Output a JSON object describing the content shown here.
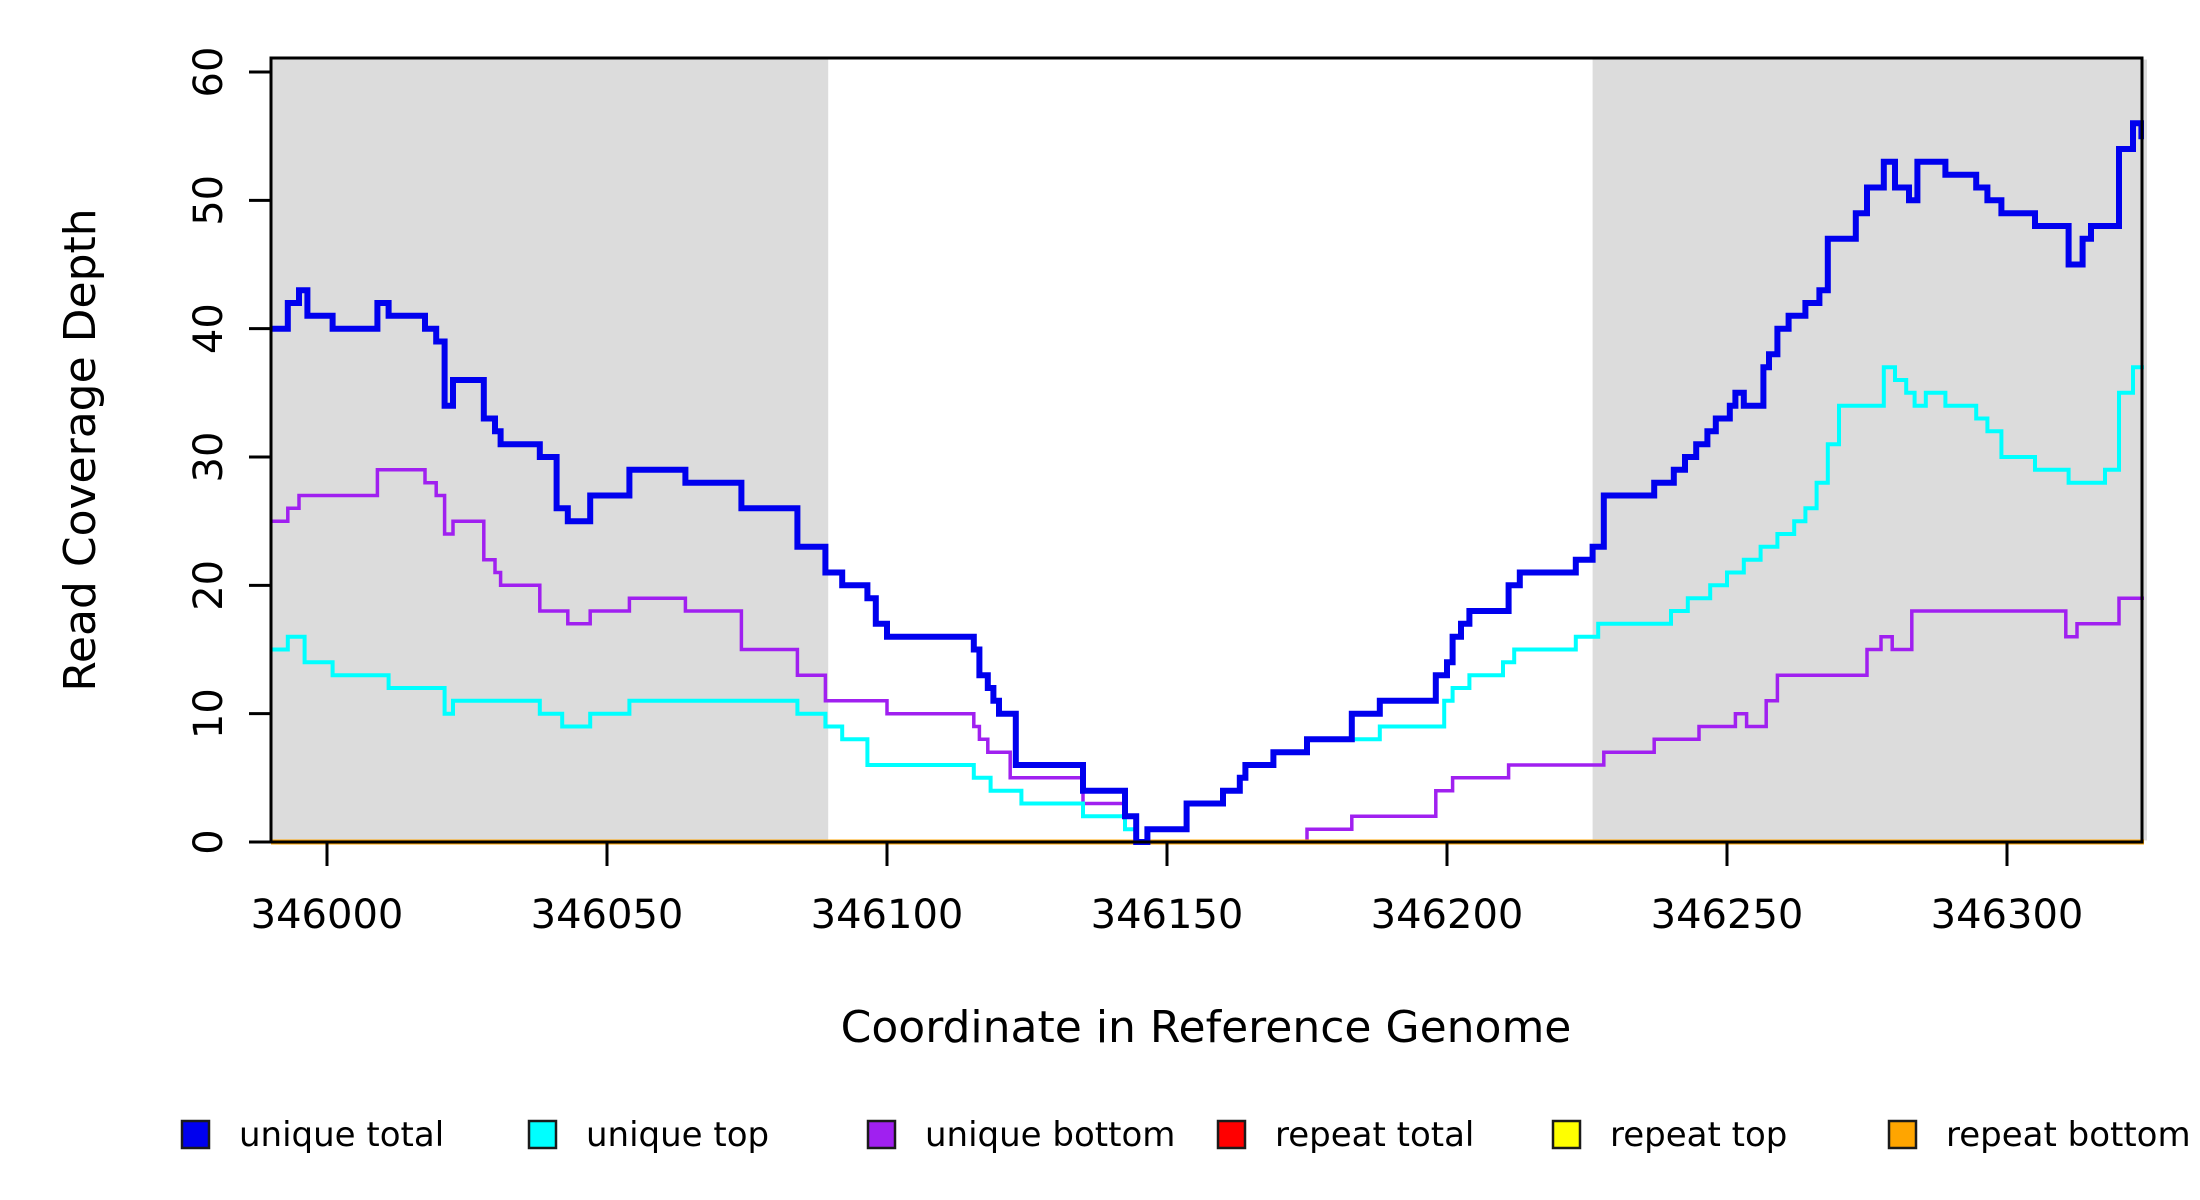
{
  "figure": {
    "background_color": "#ffffff",
    "plot_border_color": "#000000",
    "shaded_region_color": "#dcdcdc"
  },
  "legend": [
    {
      "label": "unique total",
      "color": "#0000ee"
    },
    {
      "label": "unique top",
      "color": "#00ffff"
    },
    {
      "label": "unique bottom",
      "color": "#a020f0"
    },
    {
      "label": "repeat total",
      "color": "#ff0000"
    },
    {
      "label": "repeat top",
      "color": "#ffff00"
    },
    {
      "label": "repeat bottom",
      "color": "#ffa500"
    }
  ],
  "chart_data": {
    "type": "line",
    "subtype": "step-after",
    "title": "",
    "xlabel": "Coordinate in Reference Genome",
    "ylabel": "Read Coverage Depth",
    "xlim": [
      345990,
      346325
    ],
    "ylim": [
      0,
      61
    ],
    "grid": false,
    "legend_position": "bottom",
    "x_ticks": [
      {
        "value": 346000,
        "label": "346000"
      },
      {
        "value": 346050,
        "label": "346050"
      },
      {
        "value": 346100,
        "label": "346100"
      },
      {
        "value": 346150,
        "label": "346150"
      },
      {
        "value": 346200,
        "label": "346200"
      },
      {
        "value": 346250,
        "label": "346250"
      },
      {
        "value": 346300,
        "label": "346300"
      }
    ],
    "y_ticks": [
      {
        "value": 0,
        "label": "0"
      },
      {
        "value": 10,
        "label": "10"
      },
      {
        "value": 20,
        "label": "20"
      },
      {
        "value": 30,
        "label": "30"
      },
      {
        "value": 40,
        "label": "40"
      },
      {
        "value": 50,
        "label": "50"
      },
      {
        "value": 60,
        "label": "60"
      }
    ],
    "shaded_regions": [
      {
        "start": 345990,
        "end": 346089.5
      },
      {
        "start": 346226,
        "end": 346325
      }
    ],
    "series": [
      {
        "name": "repeat total",
        "color": "#ff0000",
        "points": [
          [
            345990,
            0
          ]
        ]
      },
      {
        "name": "repeat top",
        "color": "#ffff00",
        "points": [
          [
            345990,
            0
          ]
        ]
      },
      {
        "name": "unique bottom",
        "color": "#a020f0",
        "points": [
          [
            345990,
            25
          ],
          [
            345993,
            26
          ],
          [
            345995,
            27
          ],
          [
            346009,
            29
          ],
          [
            346017.5,
            28
          ],
          [
            346019.5,
            27
          ],
          [
            346021,
            24
          ],
          [
            346022.5,
            25
          ],
          [
            346028,
            22
          ],
          [
            346030,
            21
          ],
          [
            346031,
            20
          ],
          [
            346038,
            18
          ],
          [
            346043,
            17
          ],
          [
            346047,
            18
          ],
          [
            346054,
            19
          ],
          [
            346064,
            18
          ],
          [
            346074,
            15
          ],
          [
            346084,
            13
          ],
          [
            346089,
            11
          ],
          [
            346100,
            10
          ],
          [
            346115.5,
            9
          ],
          [
            346116.5,
            8
          ],
          [
            346118,
            7
          ],
          [
            346122,
            5
          ],
          [
            346135,
            3
          ],
          [
            346142.5,
            2
          ],
          [
            346144.5,
            0
          ],
          [
            346175,
            1
          ],
          [
            346183,
            2
          ],
          [
            346198,
            4
          ],
          [
            346201,
            5
          ],
          [
            346211,
            6
          ],
          [
            346228,
            7
          ],
          [
            346237,
            8
          ],
          [
            346245,
            9
          ],
          [
            346251.5,
            10
          ],
          [
            346253.5,
            9
          ],
          [
            346257,
            11
          ],
          [
            346259,
            13
          ],
          [
            346275,
            15
          ],
          [
            346277.5,
            16
          ],
          [
            346279.5,
            15
          ],
          [
            346283,
            18
          ],
          [
            346310.5,
            16
          ],
          [
            346312.5,
            17
          ],
          [
            346320,
            19
          ]
        ]
      },
      {
        "name": "repeat bottom",
        "color": "#ffa500",
        "points": [
          [
            345990,
            0
          ]
        ]
      },
      {
        "name": "unique top",
        "color": "#00ffff",
        "points": [
          [
            345990,
            15
          ],
          [
            345993,
            16
          ],
          [
            345996,
            14
          ],
          [
            346001,
            13
          ],
          [
            346011,
            12
          ],
          [
            346021,
            10
          ],
          [
            346022.5,
            11
          ],
          [
            346038,
            10
          ],
          [
            346042,
            9
          ],
          [
            346047,
            10
          ],
          [
            346054,
            11
          ],
          [
            346084,
            10
          ],
          [
            346089,
            9
          ],
          [
            346092,
            8
          ],
          [
            346096.5,
            6
          ],
          [
            346115.5,
            5
          ],
          [
            346118.5,
            4
          ],
          [
            346124,
            3
          ],
          [
            346135,
            2
          ],
          [
            346142.5,
            1
          ],
          [
            346144.5,
            0
          ],
          [
            346146.5,
            1
          ],
          [
            346153.5,
            3
          ],
          [
            346160,
            4
          ],
          [
            346163,
            5
          ],
          [
            346164,
            6
          ],
          [
            346169,
            7
          ],
          [
            346175,
            8
          ],
          [
            346188,
            9
          ],
          [
            346199.5,
            11
          ],
          [
            346201,
            12
          ],
          [
            346204,
            13
          ],
          [
            346210,
            14
          ],
          [
            346212,
            15
          ],
          [
            346223,
            16
          ],
          [
            346227,
            17
          ],
          [
            346240,
            18
          ],
          [
            346243,
            19
          ],
          [
            346247,
            20
          ],
          [
            346250,
            21
          ],
          [
            346253,
            22
          ],
          [
            346256,
            23
          ],
          [
            346259,
            24
          ],
          [
            346262,
            25
          ],
          [
            346264,
            26
          ],
          [
            346266,
            28
          ],
          [
            346268,
            31
          ],
          [
            346270,
            34
          ],
          [
            346278,
            37
          ],
          [
            346280,
            36
          ],
          [
            346282,
            35
          ],
          [
            346283.5,
            34
          ],
          [
            346285.5,
            35
          ],
          [
            346289,
            34
          ],
          [
            346294.5,
            33
          ],
          [
            346296.5,
            32
          ],
          [
            346299,
            30
          ],
          [
            346305,
            29
          ],
          [
            346311,
            28
          ],
          [
            346317.5,
            29
          ],
          [
            346320,
            35
          ],
          [
            346322.5,
            37
          ]
        ]
      },
      {
        "name": "unique total",
        "color": "#0000ee",
        "points": [
          [
            345990,
            40
          ],
          [
            345993,
            42
          ],
          [
            345995,
            43
          ],
          [
            345996.5,
            41
          ],
          [
            346001,
            40
          ],
          [
            346009,
            42
          ],
          [
            346011,
            41
          ],
          [
            346017.5,
            40
          ],
          [
            346019.5,
            39
          ],
          [
            346021,
            34
          ],
          [
            346022.5,
            36
          ],
          [
            346028,
            33
          ],
          [
            346030,
            32
          ],
          [
            346031,
            31
          ],
          [
            346038,
            30
          ],
          [
            346041,
            26
          ],
          [
            346043,
            25
          ],
          [
            346047,
            27
          ],
          [
            346054,
            29
          ],
          [
            346064,
            28
          ],
          [
            346074,
            26
          ],
          [
            346084,
            23
          ],
          [
            346089,
            21
          ],
          [
            346092,
            20
          ],
          [
            346096.5,
            19
          ],
          [
            346098,
            17
          ],
          [
            346100,
            16
          ],
          [
            346115.5,
            15
          ],
          [
            346116.5,
            13
          ],
          [
            346118,
            12
          ],
          [
            346119,
            11
          ],
          [
            346120,
            10
          ],
          [
            346123,
            6
          ],
          [
            346135,
            4
          ],
          [
            346142.5,
            2
          ],
          [
            346144.5,
            0
          ],
          [
            346146.5,
            1
          ],
          [
            346153.5,
            3
          ],
          [
            346160,
            4
          ],
          [
            346163,
            5
          ],
          [
            346164,
            6
          ],
          [
            346169,
            7
          ],
          [
            346175,
            8
          ],
          [
            346183,
            10
          ],
          [
            346188,
            11
          ],
          [
            346198,
            13
          ],
          [
            346200,
            14
          ],
          [
            346201,
            16
          ],
          [
            346202.5,
            17
          ],
          [
            346204,
            18
          ],
          [
            346211,
            20
          ],
          [
            346213,
            21
          ],
          [
            346223,
            22
          ],
          [
            346226,
            23
          ],
          [
            346228,
            27
          ],
          [
            346237,
            28
          ],
          [
            346240.5,
            29
          ],
          [
            346242.5,
            30
          ],
          [
            346244.5,
            31
          ],
          [
            346246.5,
            32
          ],
          [
            346248,
            33
          ],
          [
            346250.5,
            34
          ],
          [
            346251.5,
            35
          ],
          [
            346253,
            34
          ],
          [
            346256.5,
            37
          ],
          [
            346257.5,
            38
          ],
          [
            346259,
            40
          ],
          [
            346261,
            41
          ],
          [
            346264,
            42
          ],
          [
            346266.5,
            43
          ],
          [
            346268,
            47
          ],
          [
            346273,
            49
          ],
          [
            346275,
            51
          ],
          [
            346278,
            53
          ],
          [
            346280,
            51
          ],
          [
            346282.5,
            50
          ],
          [
            346284,
            53
          ],
          [
            346289,
            52
          ],
          [
            346294.5,
            51
          ],
          [
            346296.5,
            50
          ],
          [
            346299,
            49
          ],
          [
            346305,
            48
          ],
          [
            346311,
            45
          ],
          [
            346313.5,
            47
          ],
          [
            346315,
            48
          ],
          [
            346320,
            54
          ],
          [
            346322.5,
            56
          ],
          [
            346324,
            55
          ]
        ]
      }
    ]
  }
}
